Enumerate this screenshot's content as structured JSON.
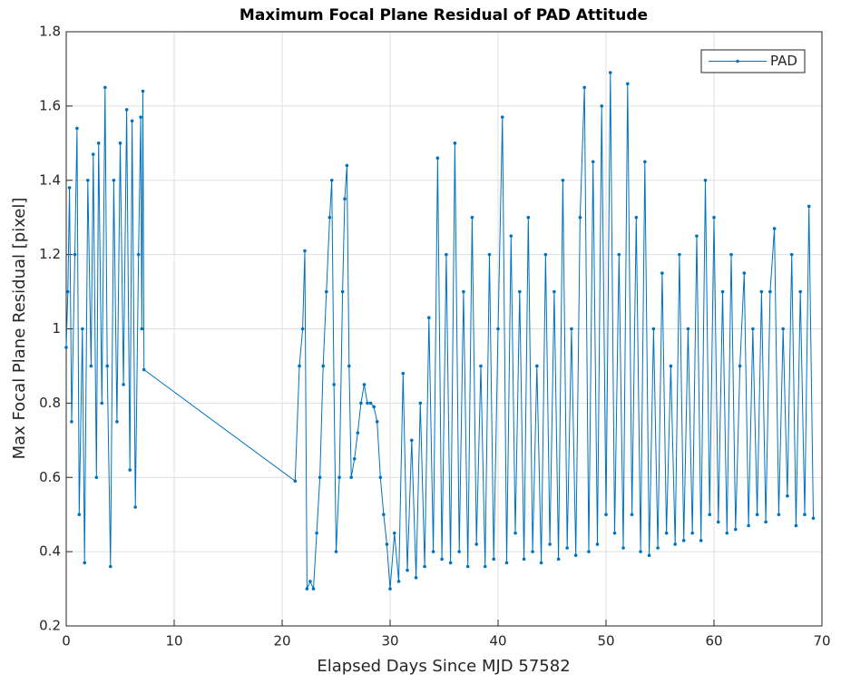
{
  "chart_data": {
    "type": "line",
    "title": "Maximum Focal Plane Residual of PAD Attitude",
    "x_label": "Elapsed Days Since MJD 57582",
    "y_label": "Max Focal Plane Residual [pixel]",
    "xlim": [
      0,
      70
    ],
    "xticks": [
      0,
      10,
      20,
      30,
      40,
      50,
      60,
      70
    ],
    "ylim": [
      0.2,
      1.8
    ],
    "yticks": [
      0.2,
      0.4,
      0.6,
      0.8,
      1,
      1.2,
      1.4,
      1.6,
      1.8
    ],
    "grid": true,
    "legend": "northeast",
    "x": [
      0,
      0.15,
      0.3,
      0.5,
      0.8,
      1.0,
      1.2,
      1.5,
      1.7,
      2.0,
      2.3,
      2.5,
      2.8,
      3.0,
      3.3,
      3.6,
      3.8,
      4.1,
      4.4,
      4.7,
      5.0,
      5.3,
      5.6,
      5.9,
      6.1,
      6.4,
      6.7,
      6.9,
      7.0,
      7.1,
      7.2,
      21.2,
      21.6,
      21.9,
      22.1,
      22.3,
      22.6,
      22.9,
      23.2,
      23.5,
      23.8,
      24.1,
      24.4,
      24.6,
      24.8,
      25.0,
      25.3,
      25.6,
      25.8,
      26.0,
      26.2,
      26.4,
      26.7,
      27.0,
      27.3,
      27.6,
      27.9,
      28.2,
      28.5,
      28.8,
      29.1,
      29.4,
      29.7,
      30.0,
      30.4,
      30.8,
      31.2,
      31.6,
      32.0,
      32.4,
      32.8,
      33.2,
      33.6,
      34.0,
      34.4,
      34.8,
      35.2,
      35.6,
      36.0,
      36.4,
      36.8,
      37.2,
      37.6,
      38.0,
      38.4,
      38.8,
      39.2,
      39.6,
      40.0,
      40.4,
      40.8,
      41.2,
      41.6,
      42.0,
      42.4,
      42.8,
      43.2,
      43.6,
      44.0,
      44.4,
      44.8,
      45.2,
      45.6,
      46.0,
      46.4,
      46.8,
      47.2,
      47.6,
      48.0,
      48.4,
      48.8,
      49.2,
      49.6,
      50.0,
      50.4,
      50.8,
      51.2,
      51.6,
      52.0,
      52.4,
      52.8,
      53.2,
      53.6,
      54.0,
      54.4,
      54.8,
      55.2,
      55.6,
      56.0,
      56.4,
      56.8,
      57.2,
      57.6,
      58.0,
      58.4,
      58.8,
      59.2,
      59.6,
      60.0,
      60.4,
      60.8,
      61.2,
      61.6,
      62.0,
      62.4,
      62.8,
      63.2,
      63.6,
      64.0,
      64.4,
      64.8,
      65.2,
      65.6,
      66.0,
      66.4,
      66.8,
      67.2,
      67.6,
      68.0,
      68.4,
      68.8,
      69.2
    ],
    "series": [
      {
        "name": "PAD",
        "color": "#0072bd",
        "values": [
          0.95,
          1.1,
          1.38,
          0.75,
          1.2,
          1.54,
          0.5,
          1.0,
          0.37,
          1.4,
          0.9,
          1.47,
          0.6,
          1.5,
          0.8,
          1.65,
          0.9,
          0.36,
          1.4,
          0.75,
          1.5,
          0.85,
          1.59,
          0.62,
          1.56,
          0.52,
          1.2,
          1.57,
          1.0,
          1.64,
          0.89,
          0.59,
          0.9,
          1.0,
          1.21,
          0.3,
          0.32,
          0.3,
          0.45,
          0.6,
          0.9,
          1.1,
          1.3,
          1.4,
          0.85,
          0.4,
          0.6,
          1.1,
          1.35,
          1.44,
          0.9,
          0.6,
          0.65,
          0.72,
          0.8,
          0.85,
          0.8,
          0.8,
          0.79,
          0.75,
          0.6,
          0.5,
          0.42,
          0.3,
          0.45,
          0.32,
          0.88,
          0.35,
          0.7,
          0.33,
          0.8,
          0.36,
          1.03,
          0.4,
          1.46,
          0.38,
          1.2,
          0.37,
          1.5,
          0.4,
          1.1,
          0.36,
          1.3,
          0.42,
          0.9,
          0.36,
          1.2,
          0.38,
          1.0,
          1.57,
          0.37,
          1.25,
          0.45,
          1.1,
          0.38,
          1.3,
          0.4,
          0.9,
          0.37,
          1.2,
          0.42,
          1.1,
          0.38,
          1.4,
          0.41,
          1.0,
          0.39,
          1.3,
          1.65,
          0.4,
          1.45,
          0.42,
          1.6,
          0.5,
          1.69,
          0.45,
          1.2,
          0.41,
          1.66,
          0.5,
          1.3,
          0.4,
          1.45,
          0.39,
          1.0,
          0.41,
          1.15,
          0.45,
          0.9,
          0.42,
          1.2,
          0.43,
          1.0,
          0.45,
          1.25,
          0.43,
          1.4,
          0.5,
          1.3,
          0.48,
          1.1,
          0.45,
          1.2,
          0.46,
          0.9,
          1.15,
          0.47,
          1.0,
          0.5,
          1.1,
          0.48,
          1.1,
          1.27,
          0.5,
          1.0,
          0.55,
          1.2,
          0.47,
          1.1,
          0.5,
          1.33,
          0.49
        ]
      }
    ]
  }
}
